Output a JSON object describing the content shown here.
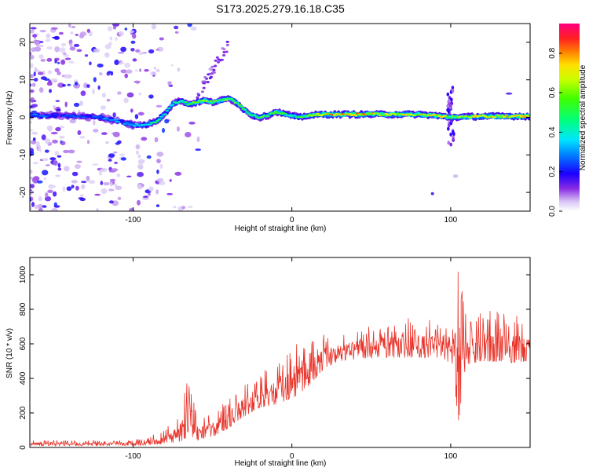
{
  "title": "S173.2025.279.16.18.C35",
  "chart_data": [
    {
      "type": "heatmap",
      "name": "spectrogram",
      "xlabel": "Height of straight line (km)",
      "ylabel": "Frequency (Hz)",
      "xlim": [
        -165,
        150
      ],
      "ylim": [
        -25,
        25
      ],
      "xticks": [
        -100,
        0,
        100
      ],
      "yticks": [
        -20,
        -10,
        0,
        10,
        20
      ],
      "colorbar": {
        "label": "Normalized spectral amplitude",
        "range": [
          0,
          0.95
        ],
        "ticks": [
          0.0,
          0.2,
          0.4,
          0.6,
          0.8
        ]
      },
      "ridge": {
        "description_points_x": [
          -165,
          -140,
          -120,
          -100,
          -92,
          -85,
          -80,
          -75,
          -70,
          -65,
          -60,
          -55,
          -50,
          -45,
          -40,
          -35,
          -30,
          -25,
          -20,
          -15,
          -10,
          -5,
          0,
          5,
          10,
          20,
          40,
          60,
          80,
          90,
          100,
          120,
          150
        ],
        "frequency_y": [
          0.5,
          0.5,
          0.0,
          -2.0,
          -2.0,
          -1.0,
          1.0,
          3.5,
          4.5,
          3.5,
          4.0,
          4.5,
          4.0,
          4.5,
          5.0,
          4.0,
          2.0,
          0.5,
          0.0,
          0.5,
          1.5,
          1.0,
          0.5,
          0.0,
          0.5,
          0.8,
          0.8,
          0.8,
          0.8,
          0.5,
          0.0,
          0.3,
          0.3
        ],
        "peak_amplitude": [
          0.3,
          0.25,
          0.3,
          0.35,
          0.45,
          0.5,
          0.45,
          0.45,
          0.5,
          0.55,
          0.65,
          0.65,
          0.6,
          0.6,
          0.65,
          0.6,
          0.55,
          0.55,
          0.6,
          0.55,
          0.6,
          0.55,
          0.5,
          0.55,
          0.65,
          0.8,
          0.85,
          0.75,
          0.75,
          0.8,
          0.7,
          0.75,
          0.85
        ]
      }
    },
    {
      "type": "line",
      "name": "snr",
      "xlabel": "Height of straight line (km)",
      "ylabel": "SNR (10 * v/v)",
      "xlim": [
        -165,
        150
      ],
      "ylim": [
        0,
        1100
      ],
      "xticks": [
        -100,
        0,
        100
      ],
      "yticks": [
        0,
        200,
        400,
        600,
        800,
        1000
      ],
      "color": "#e8342a",
      "envelope_x": [
        -165,
        -100,
        -90,
        -80,
        -70,
        -66,
        -64,
        -60,
        -50,
        -40,
        -30,
        -20,
        -10,
        0,
        10,
        20,
        30,
        40,
        60,
        80,
        95,
        100,
        103,
        105,
        107,
        110,
        120,
        140,
        150
      ],
      "envelope_low": [
        10,
        10,
        15,
        20,
        30,
        60,
        60,
        40,
        60,
        110,
        180,
        230,
        250,
        280,
        350,
        450,
        500,
        510,
        520,
        520,
        520,
        480,
        300,
        150,
        300,
        480,
        500,
        490,
        500
      ],
      "envelope_high": [
        40,
        40,
        60,
        100,
        200,
        420,
        440,
        150,
        200,
        280,
        350,
        420,
        480,
        560,
        600,
        640,
        650,
        670,
        700,
        720,
        720,
        760,
        950,
        1100,
        900,
        720,
        760,
        740,
        700
      ]
    }
  ]
}
